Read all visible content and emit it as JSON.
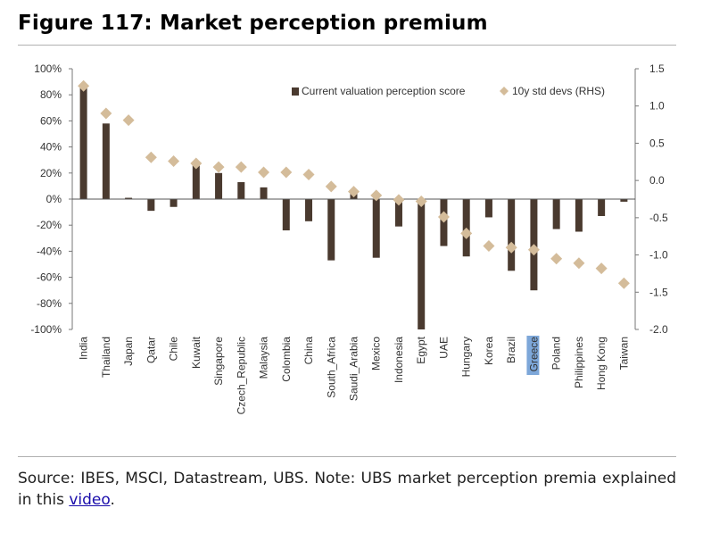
{
  "figure": {
    "title": "Figure 117: Market perception premium"
  },
  "source": {
    "text": "Source: IBES, MSCI, Datastream, UBS. Note: UBS market perception premia explained in this ",
    "link_text": "video",
    "tail": "."
  },
  "chart_data": {
    "type": "bar",
    "combo": "bar + scatter (secondary axis)",
    "categories": [
      "India",
      "Thailand",
      "Japan",
      "Qatar",
      "Chile",
      "Kuwait",
      "Singapore",
      "Czech_Republic",
      "Malaysia",
      "Colombia",
      "China",
      "South_Africa",
      "Saudi_Arabia",
      "Mexico",
      "Indonesia",
      "Egypt",
      "UAE",
      "Hungary",
      "Korea",
      "Brazil",
      "Greece",
      "Poland",
      "Philippines",
      "Hong Kong",
      "Taiwan"
    ],
    "highlighted_category": "Greece",
    "series": [
      {
        "name": "Current  valuation perception score",
        "axis": "left",
        "type": "bar",
        "color": "#4a3a2f",
        "values": [
          86,
          58,
          1,
          -9,
          -6,
          27,
          20,
          13,
          9,
          -24,
          -17,
          -47,
          6,
          -45,
          -21,
          -100,
          -36,
          -44,
          -14,
          -55,
          -70,
          -23,
          -25,
          -13,
          -2
        ]
      },
      {
        "name": "10y std devs (RHS)",
        "axis": "right",
        "type": "scatter",
        "marker": "diamond",
        "color": "#d4bc9a",
        "values": [
          1.27,
          0.9,
          0.81,
          0.31,
          0.26,
          0.23,
          0.18,
          0.18,
          0.11,
          0.11,
          0.08,
          -0.08,
          -0.15,
          -0.2,
          -0.26,
          -0.28,
          -0.49,
          -0.71,
          -0.88,
          -0.9,
          -0.93,
          -1.05,
          -1.11,
          -1.18,
          -1.38
        ]
      }
    ],
    "y_left": {
      "min": -100,
      "max": 100,
      "step": 20,
      "ticks": [
        "100%",
        "80%",
        "60%",
        "40%",
        "20%",
        "0%",
        "-20%",
        "-40%",
        "-60%",
        "-80%",
        "-100%"
      ]
    },
    "y_right": {
      "min": -2.0,
      "max": 1.5,
      "step": 0.5,
      "ticks": [
        "1.5",
        "1.0",
        "0.5",
        "0.0",
        "-0.5",
        "-1.0",
        "-1.5",
        "-2.0"
      ]
    },
    "grid": false,
    "legend_position": "top-right"
  }
}
